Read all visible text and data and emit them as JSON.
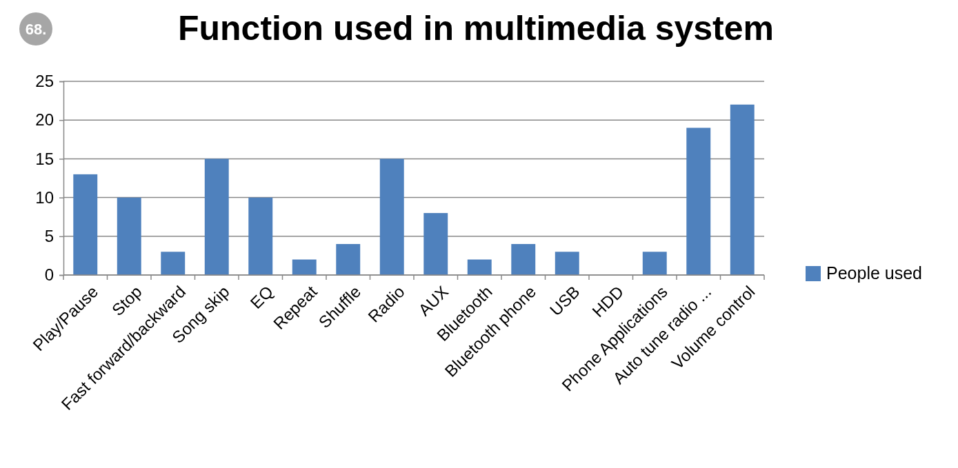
{
  "chart_data": {
    "type": "bar",
    "title": "Function used in multimedia system",
    "annotations": [
      "68."
    ],
    "categories": [
      "Play/Pause",
      "Stop",
      "Fast forward/backward",
      "Song skip",
      "EQ",
      "Repeat",
      "Shuffle",
      "Radio",
      "AUX",
      "Bluetooth",
      "Bluetooth phone",
      "USB",
      "HDD",
      "Phone Applications",
      "Auto tune radio ...",
      "Volume control"
    ],
    "series": [
      {
        "name": "People used",
        "color": "#4f81bd",
        "values": [
          13,
          10,
          3,
          15,
          10,
          2,
          4,
          15,
          8,
          2,
          4,
          3,
          0,
          3,
          19,
          22
        ]
      }
    ],
    "ylim": [
      0,
      25
    ],
    "yticks": [
      0,
      5,
      10,
      15,
      20,
      25
    ],
    "grid": "y",
    "legend": "right"
  }
}
